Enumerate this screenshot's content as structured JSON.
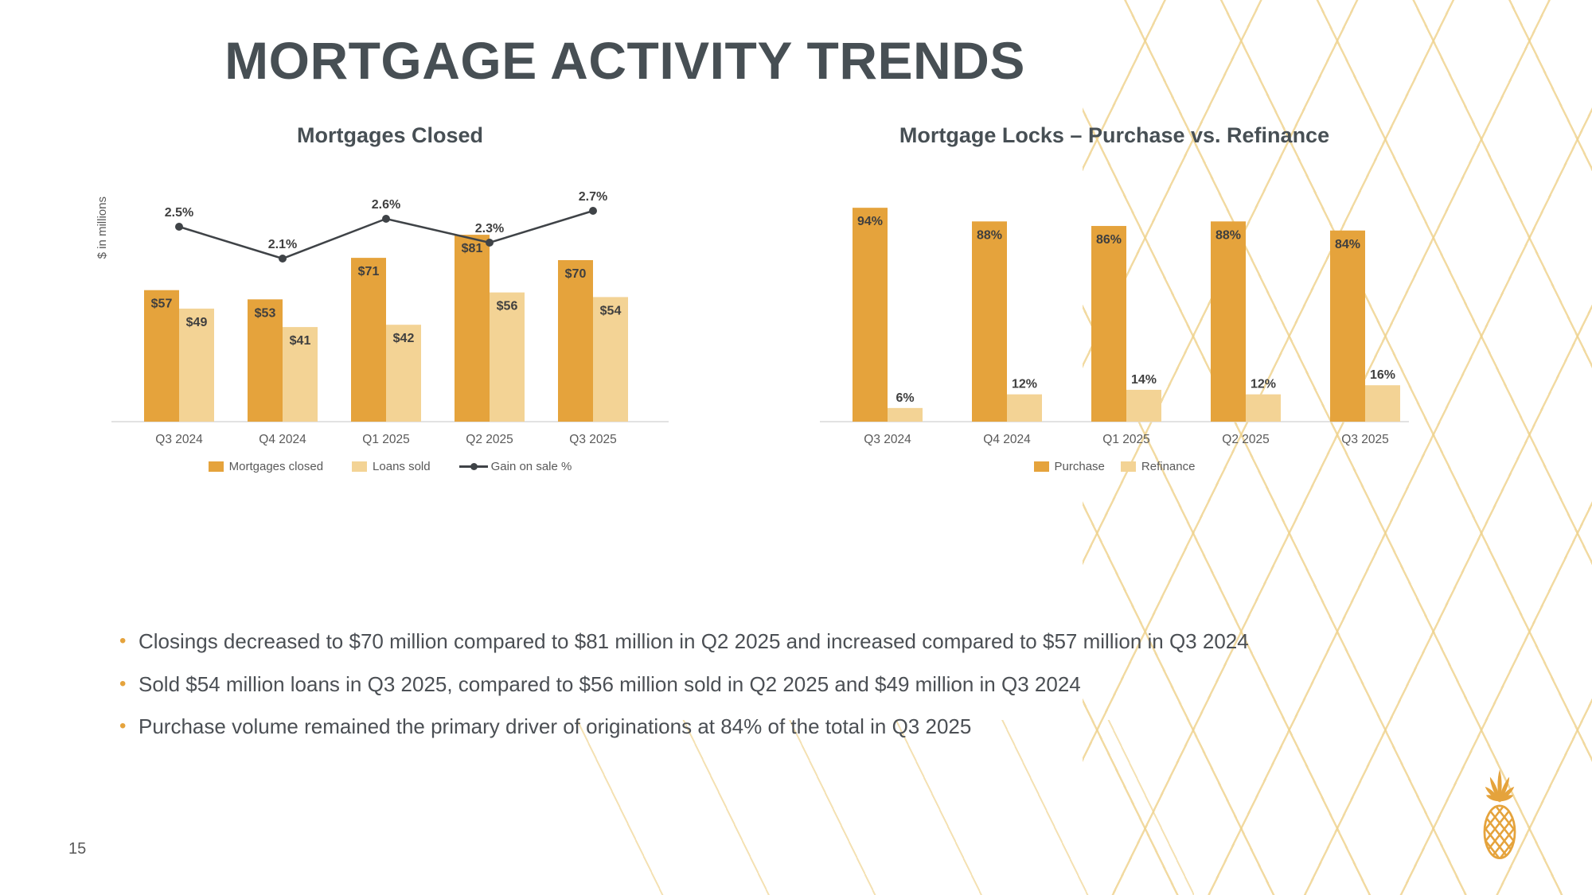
{
  "slide": {
    "title": "MORTGAGE ACTIVITY TRENDS",
    "page_number": "15"
  },
  "colors": {
    "dark_gold": "#E5A33C",
    "light_gold": "#F3D395",
    "line_gray": "#3F4347",
    "title_gray": "#474F54",
    "text_gray": "#4B4F54",
    "lattice_gold": "#EED18A"
  },
  "chart_data": [
    {
      "type": "bar",
      "title": "Mortgages Closed",
      "ylabel": "$ in millions",
      "categories": [
        "Q3 2024",
        "Q4 2024",
        "Q1 2025",
        "Q2 2025",
        "Q3 2025"
      ],
      "series": [
        {
          "name": "Mortgages closed",
          "values": [
            57,
            53,
            71,
            81,
            70
          ],
          "labels": [
            "$57",
            "$53",
            "$71",
            "$81",
            "$70"
          ]
        },
        {
          "name": "Loans sold",
          "values": [
            49,
            41,
            42,
            56,
            54
          ],
          "labels": [
            "$49",
            "$41",
            "$42",
            "$56",
            "$54"
          ]
        }
      ],
      "line_series": {
        "name": "Gain on sale %",
        "values": [
          2.5,
          2.1,
          2.6,
          2.3,
          2.7
        ],
        "labels": [
          "2.5%",
          "2.1%",
          "2.6%",
          "2.3%",
          "2.7%"
        ]
      },
      "legend": [
        "Mortgages closed",
        "Loans sold",
        "Gain on sale %"
      ],
      "legend_position": "bottom",
      "grid": false
    },
    {
      "type": "bar",
      "title": "Mortgage Locks – Purchase vs. Refinance",
      "categories": [
        "Q3 2024",
        "Q4 2024",
        "Q1 2025",
        "Q2 2025",
        "Q3 2025"
      ],
      "series": [
        {
          "name": "Purchase",
          "values": [
            94,
            88,
            86,
            88,
            84
          ],
          "labels": [
            "94%",
            "88%",
            "86%",
            "88%",
            "84%"
          ]
        },
        {
          "name": "Refinance",
          "values": [
            6,
            12,
            14,
            12,
            16
          ],
          "labels": [
            "6%",
            "12%",
            "14%",
            "12%",
            "16%"
          ]
        }
      ],
      "legend": [
        "Purchase",
        "Refinance"
      ],
      "legend_position": "bottom",
      "grid": false
    }
  ],
  "bullets": [
    "Closings decreased to $70 million compared to $81 million in Q2 2025 and increased compared to $57 million in Q3 2024",
    "Sold $54 million loans in Q3 2025, compared to $56 million sold in Q2 2025 and $49 million in Q3 2024",
    "Purchase volume remained the primary driver of originations at 84% of the total in Q3 2025"
  ]
}
